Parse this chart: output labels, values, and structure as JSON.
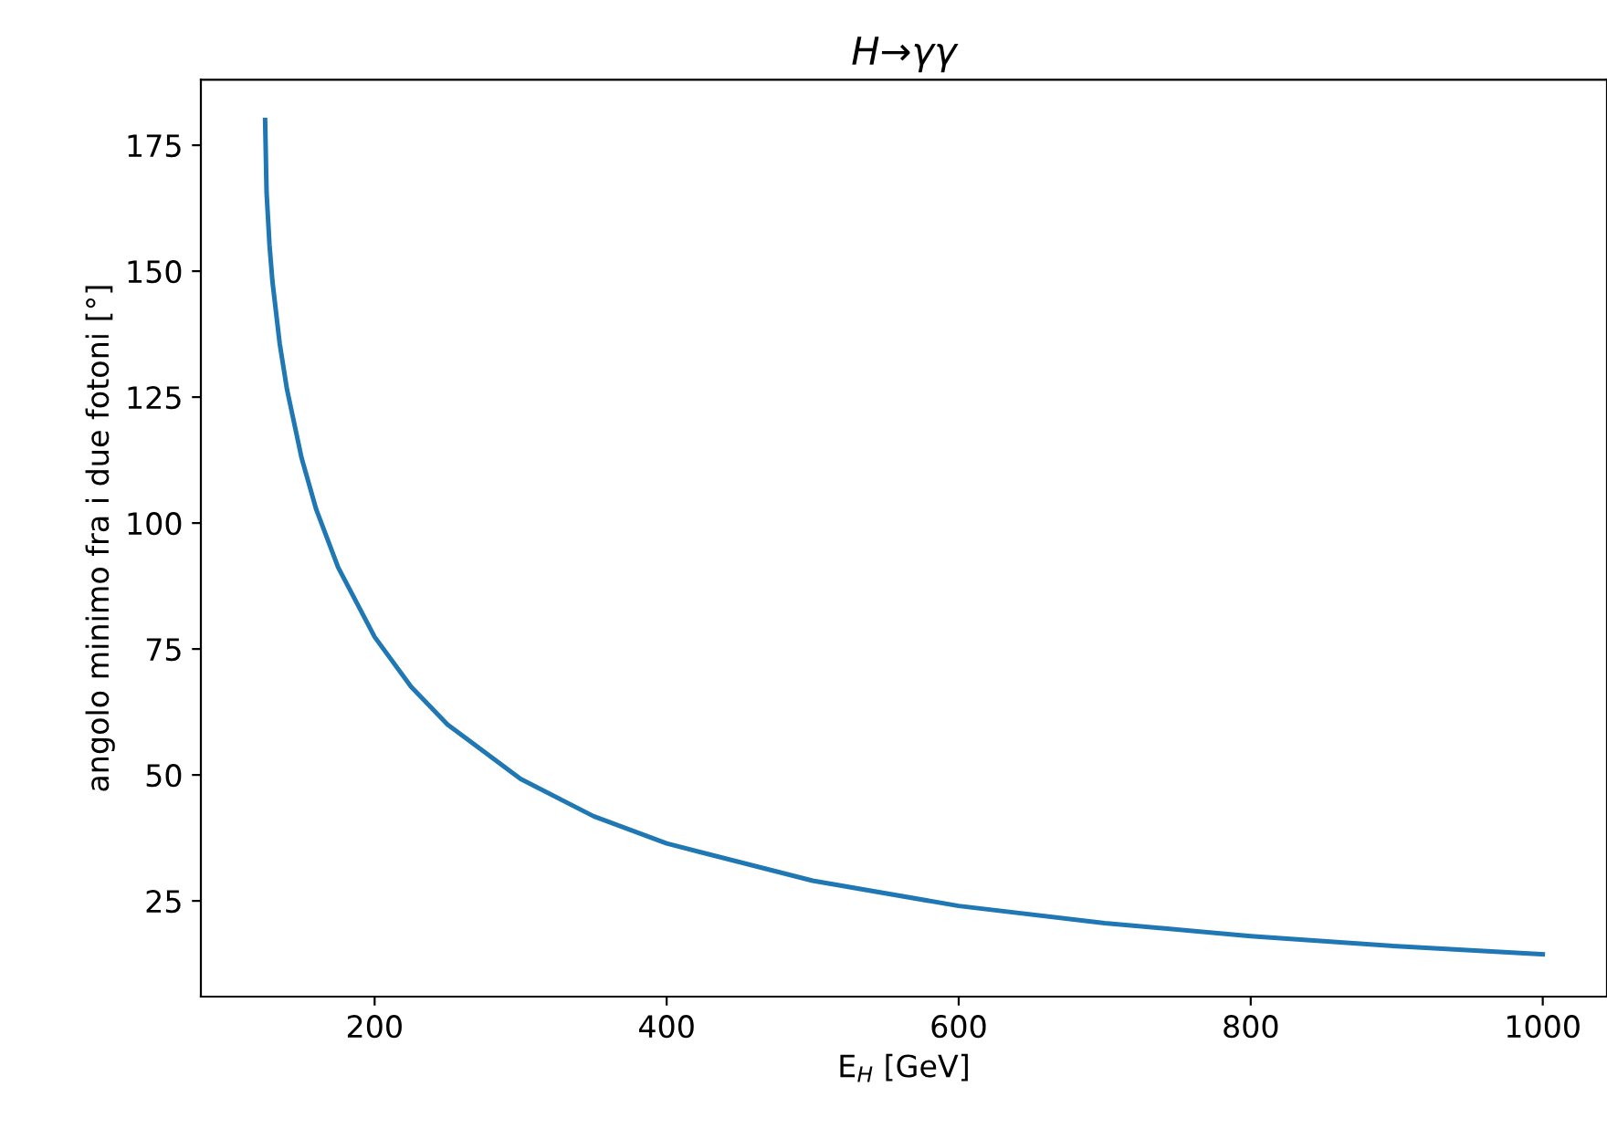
{
  "chart_data": {
    "type": "line",
    "title": "H→γγ",
    "xlabel": "E$_{H}$ [GeV]",
    "ylabel": "angolo minimo fra i due fotoni [°]",
    "x": [
      125,
      126,
      128,
      130,
      135,
      140,
      150,
      160,
      175,
      200,
      225,
      250,
      300,
      350,
      400,
      500,
      600,
      700,
      800,
      900,
      1000
    ],
    "series": [
      {
        "color": "#1f77b4",
        "values": [
          180,
          165.6,
          155.2,
          148,
          135.6,
          126.5,
          112.9,
          102.7,
          91.2,
          77.4,
          67.5,
          60,
          49.2,
          41.8,
          36.4,
          29,
          24,
          20.6,
          18,
          16,
          14.4
        ]
      }
    ],
    "xlim": [
      81,
      1044
    ],
    "ylim": [
      6,
      188
    ],
    "xticks": [
      200,
      400,
      600,
      800,
      1000
    ],
    "yticks": [
      25,
      50,
      75,
      100,
      125,
      150,
      175
    ],
    "grid": false,
    "legend": false,
    "marker": "none",
    "line_style": "solid"
  }
}
